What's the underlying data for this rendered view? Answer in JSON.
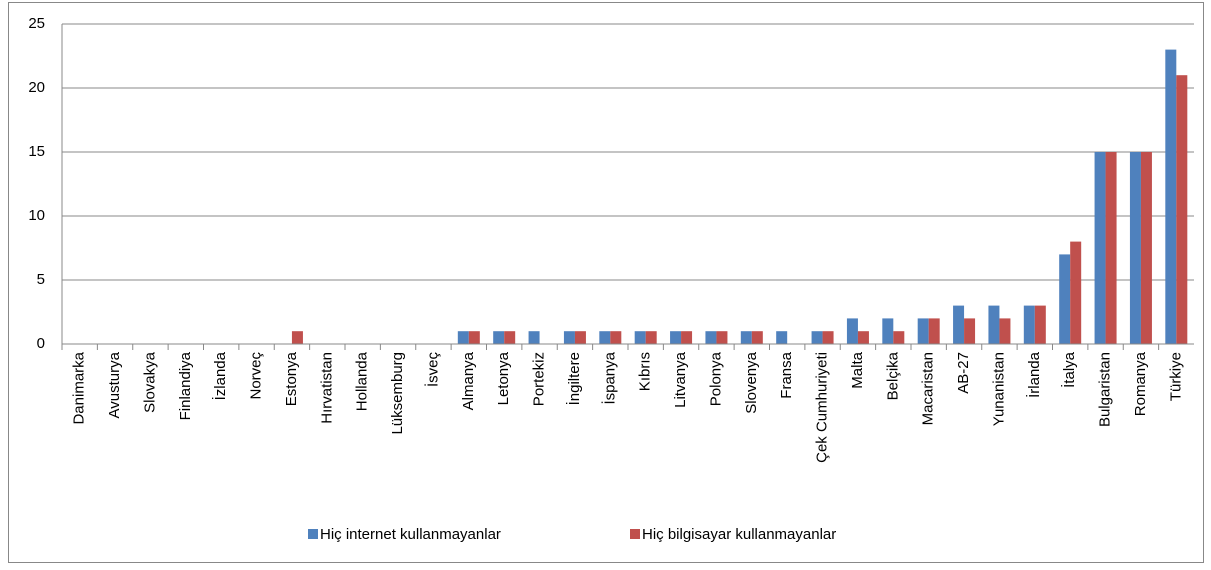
{
  "chart_data": {
    "type": "bar",
    "categories": [
      "Danimarka",
      "Avusturya",
      "Slovakya",
      "Finlandiya",
      "İzlanda",
      "Norveç",
      "Estonya",
      "Hırvatistan",
      "Hollanda",
      "Lüksemburg",
      "İsveç",
      "Almanya",
      "Letonya",
      "Portekiz",
      "İngiltere",
      "İspanya",
      "Kıbrıs",
      "Litvanya",
      "Polonya",
      "Slovenya",
      "Fransa",
      "Çek Cumhuriyeti",
      "Malta",
      "Belçika",
      "Macaristan",
      "AB-27",
      "Yunanistan",
      "İrlanda",
      "İtalya",
      "Bulgaristan",
      "Romanya",
      "Türkiye"
    ],
    "series": [
      {
        "name": "Hiç internet kullanmayanlar",
        "color": "#4f81bd",
        "values": [
          0,
          0,
          0,
          0,
          0,
          0,
          0,
          0,
          0,
          0,
          0,
          1,
          1,
          1,
          1,
          1,
          1,
          1,
          1,
          1,
          1,
          1,
          2,
          2,
          2,
          3,
          3,
          3,
          7,
          15,
          15,
          23
        ]
      },
      {
        "name": "Hiç bilgisayar kullanmayanlar",
        "color": "#c0504d",
        "values": [
          0,
          0,
          0,
          0,
          0,
          0,
          1,
          0,
          0,
          0,
          0,
          1,
          1,
          0,
          1,
          1,
          1,
          1,
          1,
          1,
          0,
          1,
          1,
          1,
          2,
          2,
          2,
          3,
          8,
          15,
          15,
          21
        ]
      }
    ],
    "ylim": [
      0,
      25
    ],
    "yticks": [
      0,
      5,
      10,
      15,
      20,
      25
    ],
    "grid": true,
    "legend": "bottom"
  }
}
